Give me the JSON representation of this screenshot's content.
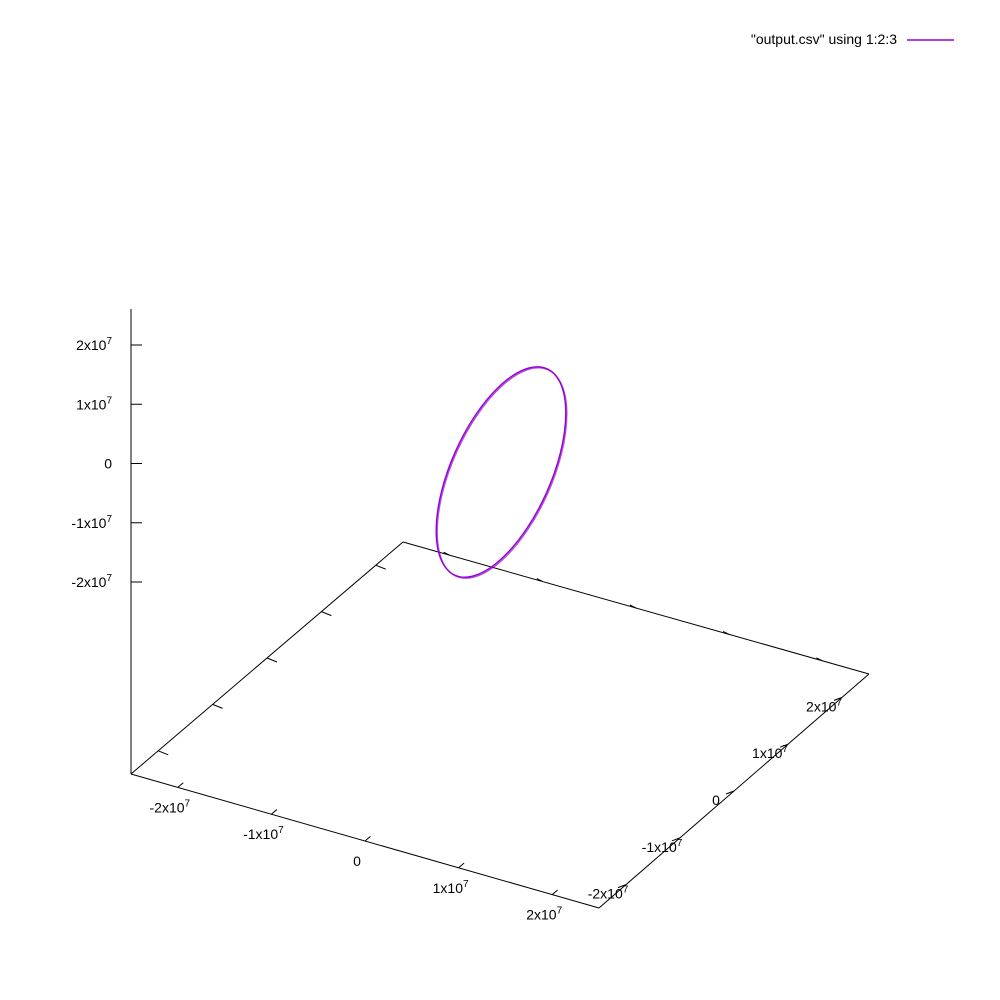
{
  "chart_data": {
    "type": "line",
    "plot_kind": "3d-parametric",
    "series": [
      {
        "name": "\"output.csv\" using 1:2:3",
        "color": "#9400d3",
        "description_shape": "closed elliptical orbit",
        "x": [
          0,
          3200000,
          5000000,
          4200000,
          1200000,
          -2600000,
          -5000000,
          -4600000,
          -1800000,
          0
        ],
        "y": [
          -9000000,
          -6500000,
          -1500000,
          4000000,
          8500000,
          10000000,
          7500000,
          2500000,
          -3500000,
          -9000000
        ],
        "z": [
          -20000000,
          -18500000,
          -9000000,
          5000000,
          15000000,
          18500000,
          11000000,
          -3000000,
          -15500000,
          -20000000
        ]
      }
    ],
    "axes": {
      "x": {
        "range": [
          -25000000,
          25000000
        ],
        "ticks": [
          -20000000,
          -10000000,
          0,
          10000000,
          20000000
        ],
        "tick_labels": [
          {
            "mant": "-2x10",
            "exp": "7"
          },
          {
            "mant": "-1x10",
            "exp": "7"
          },
          {
            "mant": "0",
            "exp": ""
          },
          {
            "mant": "1x10",
            "exp": "7"
          },
          {
            "mant": "2x10",
            "exp": "7"
          }
        ]
      },
      "y": {
        "range": [
          -25000000,
          25000000
        ],
        "ticks": [
          -20000000,
          -10000000,
          0,
          10000000,
          20000000
        ],
        "tick_labels": [
          {
            "mant": "-2x10",
            "exp": "7"
          },
          {
            "mant": "-1x10",
            "exp": "7"
          },
          {
            "mant": "0",
            "exp": ""
          },
          {
            "mant": "1x10",
            "exp": "7"
          },
          {
            "mant": "2x10",
            "exp": "7"
          }
        ]
      },
      "z": {
        "range": [
          -25000000,
          25000000
        ],
        "ticks": [
          -20000000,
          -10000000,
          0,
          10000000,
          20000000
        ],
        "tick_labels": [
          {
            "mant": "-2x10",
            "exp": "7"
          },
          {
            "mant": "-1x10",
            "exp": "7"
          },
          {
            "mant": "0",
            "exp": ""
          },
          {
            "mant": "1x10",
            "exp": "7"
          },
          {
            "mant": "2x10",
            "exp": "7"
          }
        ]
      }
    },
    "legend": {
      "position": "top-right",
      "entries": [
        "\"output.csv\" using 1:2:3"
      ]
    },
    "grid": false,
    "title": "",
    "xlabel": "",
    "ylabel": "",
    "zlabel": ""
  }
}
